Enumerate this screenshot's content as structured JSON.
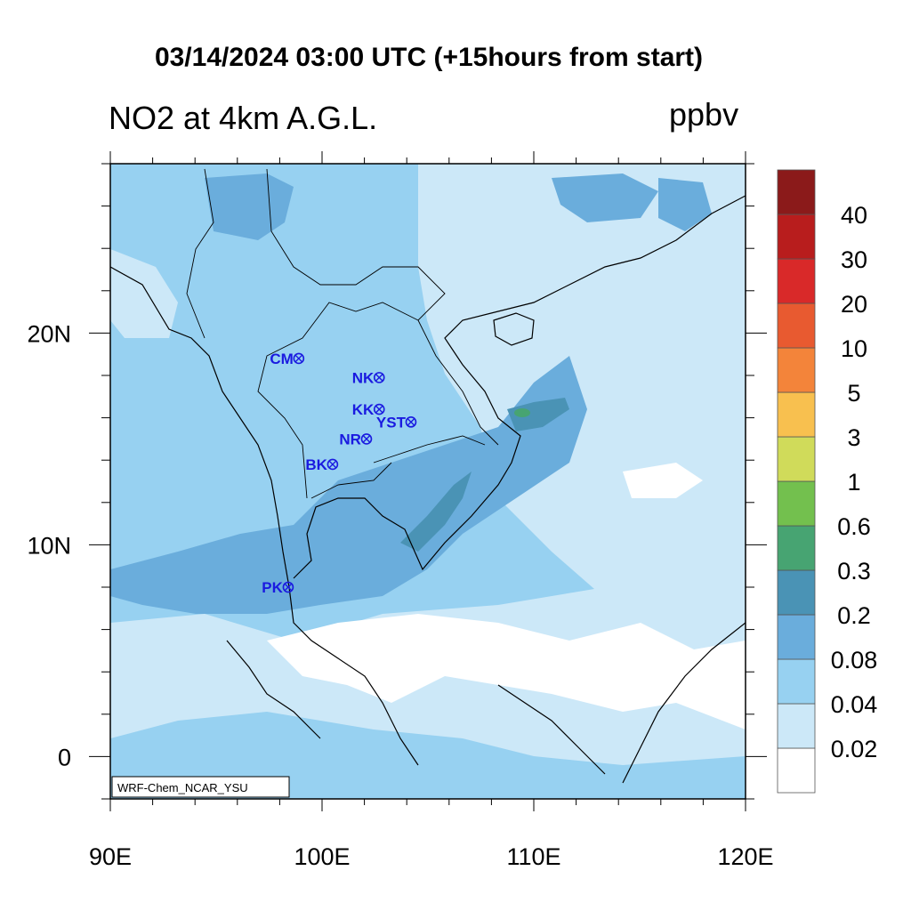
{
  "header": {
    "title": "03/14/2024 03:00 UTC (+15hours from start)",
    "variable": "NO2 at 4km A.G.L.",
    "units": "ppbv",
    "credit": "WRF-Chem_NCAR_YSU"
  },
  "map": {
    "lon_range": [
      90,
      120
    ],
    "lat_range": [
      -2,
      28
    ],
    "lon_ticks": [
      {
        "value": 90,
        "label": "90E"
      },
      {
        "value": 100,
        "label": "100E"
      },
      {
        "value": 110,
        "label": "110E"
      },
      {
        "value": 120,
        "label": "120E"
      }
    ],
    "lat_ticks": [
      {
        "value": 0,
        "label": "0"
      },
      {
        "value": 10,
        "label": "10N"
      },
      {
        "value": 20,
        "label": "20N"
      }
    ],
    "stations": [
      {
        "code": "CM",
        "lon": 98.9,
        "lat": 18.8
      },
      {
        "code": "NK",
        "lon": 102.7,
        "lat": 17.9
      },
      {
        "code": "KK",
        "lon": 102.7,
        "lat": 16.4
      },
      {
        "code": "YST",
        "lon": 104.2,
        "lat": 15.8
      },
      {
        "code": "NR",
        "lon": 102.1,
        "lat": 15.0
      },
      {
        "code": "BK",
        "lon": 100.5,
        "lat": 13.8
      },
      {
        "code": "PK",
        "lon": 98.4,
        "lat": 8.0
      }
    ]
  },
  "colorbar": {
    "levels": [
      "0.02",
      "0.04",
      "0.08",
      "0.2",
      "0.3",
      "0.6",
      "1",
      "3",
      "5",
      "10",
      "20",
      "30",
      "40"
    ],
    "colors": [
      "#ffffff",
      "#cce8f8",
      "#97d1f1",
      "#6aaddc",
      "#4a93b5",
      "#47a472",
      "#73c04e",
      "#d0db5a",
      "#f8c04f",
      "#f3843a",
      "#e85a30",
      "#d92929",
      "#b81d1d",
      "#8b1a1a"
    ]
  }
}
